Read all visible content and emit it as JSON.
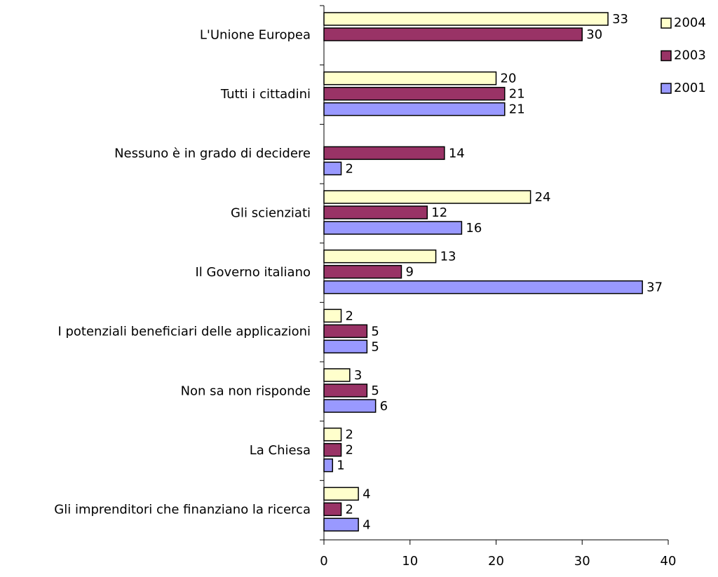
{
  "chart_data": {
    "type": "bar",
    "orientation": "horizontal",
    "categories": [
      "L'Unione Europea",
      "Tutti i cittadini",
      "Nessuno è in grado di decidere",
      "Gli scienziati",
      "Il Governo italiano",
      "I potenziali beneficiari delle applicazioni",
      "Non sa non risponde",
      "La Chiesa",
      "Gli imprenditori che finanziano la ricerca"
    ],
    "series": [
      {
        "name": "2004",
        "color": "#ffffcc",
        "values": [
          33,
          20,
          null,
          24,
          13,
          2,
          3,
          2,
          4
        ]
      },
      {
        "name": "2003",
        "color": "#993366",
        "values": [
          30,
          21,
          14,
          12,
          9,
          5,
          5,
          2,
          2
        ]
      },
      {
        "name": "2001",
        "color": "#9999ff",
        "values": [
          null,
          21,
          2,
          16,
          37,
          5,
          6,
          1,
          4
        ]
      }
    ],
    "xlim": [
      0,
      40
    ],
    "xticks": [
      0,
      10,
      20,
      30,
      40
    ],
    "legend": "top-right"
  }
}
